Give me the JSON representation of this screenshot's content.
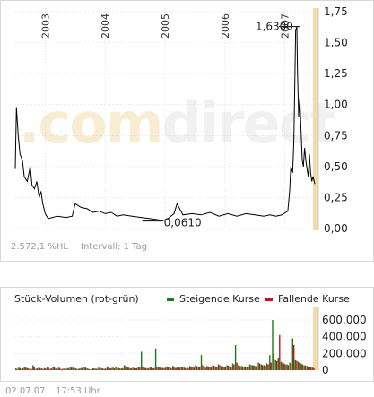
{
  "watermark": {
    "part1": ".com",
    "part2": "direct"
  },
  "footer": {
    "change": "2.572,1 %HL",
    "interval": "Intervall: 1 Tag",
    "date": "02.07.07",
    "time": "17:53 Uhr"
  },
  "colors": {
    "price_line": "#000000",
    "highlight": "#f3dda4",
    "rising": "#1a7a1a",
    "falling": "#c0161b",
    "grid": "#cccccc"
  },
  "chart_data": [
    {
      "type": "line",
      "title": "",
      "xlabel": "",
      "ylabel": "",
      "x_ticks": [
        "2003",
        "2004",
        "2005",
        "2006",
        "2007"
      ],
      "y_ticks": [
        "1,75",
        "1,50",
        "1,25",
        "1,00",
        "0,75",
        "0,50",
        "0,25",
        "0,00"
      ],
      "ylim": [
        0,
        1.75
      ],
      "xlim": [
        2002.5,
        2007.5
      ],
      "grid": true,
      "annotations": [
        {
          "label": "1,6300",
          "x": 2007.2,
          "y": 1.63
        },
        {
          "label": "0,0610",
          "x": 2004.95,
          "y": 0.061
        }
      ],
      "series": [
        {
          "values": [
            [
              2002.5,
              0.48
            ],
            [
              2002.52,
              0.98
            ],
            [
              2002.55,
              0.75
            ],
            [
              2002.58,
              0.6
            ],
            [
              2002.62,
              0.55
            ],
            [
              2002.65,
              0.42
            ],
            [
              2002.7,
              0.38
            ],
            [
              2002.75,
              0.5
            ],
            [
              2002.78,
              0.35
            ],
            [
              2002.82,
              0.32
            ],
            [
              2002.86,
              0.38
            ],
            [
              2002.9,
              0.25
            ],
            [
              2002.93,
              0.3
            ],
            [
              2002.96,
              0.2
            ],
            [
              2003.0,
              0.12
            ],
            [
              2003.05,
              0.08
            ],
            [
              2003.2,
              0.1
            ],
            [
              2003.35,
              0.09
            ],
            [
              2003.45,
              0.1
            ],
            [
              2003.5,
              0.2
            ],
            [
              2003.6,
              0.17
            ],
            [
              2003.7,
              0.16
            ],
            [
              2003.8,
              0.13
            ],
            [
              2003.9,
              0.14
            ],
            [
              2004.0,
              0.12
            ],
            [
              2004.1,
              0.13
            ],
            [
              2004.2,
              0.1
            ],
            [
              2004.3,
              0.11
            ],
            [
              2004.45,
              0.1
            ],
            [
              2004.6,
              0.09
            ],
            [
              2004.75,
              0.08
            ],
            [
              2004.9,
              0.07
            ],
            [
              2004.95,
              0.061
            ],
            [
              2005.05,
              0.08
            ],
            [
              2005.15,
              0.12
            ],
            [
              2005.2,
              0.2
            ],
            [
              2005.3,
              0.11
            ],
            [
              2005.45,
              0.12
            ],
            [
              2005.6,
              0.11
            ],
            [
              2005.75,
              0.13
            ],
            [
              2005.9,
              0.1
            ],
            [
              2006.05,
              0.12
            ],
            [
              2006.2,
              0.1
            ],
            [
              2006.35,
              0.12
            ],
            [
              2006.5,
              0.11
            ],
            [
              2006.65,
              0.1
            ],
            [
              2006.75,
              0.11
            ],
            [
              2006.85,
              0.1
            ],
            [
              2006.95,
              0.11
            ],
            [
              2007.05,
              0.14
            ],
            [
              2007.08,
              0.3
            ],
            [
              2007.1,
              0.5
            ],
            [
              2007.13,
              0.45
            ],
            [
              2007.15,
              0.7
            ],
            [
              2007.17,
              1.3
            ],
            [
              2007.18,
              1.6
            ],
            [
              2007.2,
              1.63
            ],
            [
              2007.21,
              1.3
            ],
            [
              2007.23,
              0.9
            ],
            [
              2007.25,
              1.05
            ],
            [
              2007.27,
              0.8
            ],
            [
              2007.29,
              0.55
            ],
            [
              2007.31,
              0.5
            ],
            [
              2007.33,
              0.65
            ],
            [
              2007.35,
              0.55
            ],
            [
              2007.37,
              0.48
            ],
            [
              2007.39,
              0.42
            ],
            [
              2007.41,
              0.6
            ],
            [
              2007.43,
              0.45
            ],
            [
              2007.45,
              0.38
            ],
            [
              2007.47,
              0.42
            ],
            [
              2007.5,
              0.36
            ]
          ]
        }
      ]
    },
    {
      "type": "bar",
      "title": "Stück-Volumen (rot-grün)",
      "legend": [
        "Steigende Kurse",
        "Fallende Kurse"
      ],
      "y_ticks": [
        "600.000",
        "400.000",
        "200.000",
        "0"
      ],
      "ylim": [
        0,
        750000
      ],
      "series": [
        {
          "name": "Steigende Kurse",
          "values": [
            20000,
            30000,
            15000,
            40000,
            25000,
            10000,
            60000,
            15000,
            30000,
            20000,
            25000,
            35000,
            15000,
            45000,
            20000,
            30000,
            12000,
            18000,
            25000,
            40000,
            30000,
            20000,
            15000,
            28000,
            35000,
            20000,
            10000,
            22000,
            18000,
            30000,
            25000,
            15000,
            45000,
            20000,
            30000,
            40000,
            25000,
            20000,
            60000,
            35000,
            25000,
            30000,
            20000,
            40000,
            220000,
            30000,
            25000,
            35000,
            20000,
            260000,
            40000,
            30000,
            25000,
            45000,
            30000,
            50000,
            25000,
            35000,
            40000,
            30000,
            30000,
            50000,
            35000,
            60000,
            40000,
            180000,
            35000,
            50000,
            40000,
            60000,
            45000,
            70000,
            50000,
            40000,
            60000,
            45000,
            80000,
            300000,
            60000,
            50000,
            45000,
            40000,
            70000,
            60000,
            50000,
            90000,
            70000,
            60000,
            80000,
            180000,
            600000,
            120000,
            150000,
            100000,
            80000,
            70000,
            90000,
            380000,
            120000,
            100000,
            80000,
            60000,
            50000,
            40000,
            30000
          ]
        },
        {
          "name": "Fallende Kurse",
          "values": [
            15000,
            25000,
            20000,
            30000,
            20000,
            15000,
            40000,
            20000,
            25000,
            15000,
            20000,
            30000,
            20000,
            35000,
            15000,
            25000,
            18000,
            15000,
            20000,
            30000,
            25000,
            15000,
            20000,
            22000,
            30000,
            15000,
            12000,
            20000,
            15000,
            25000,
            20000,
            18000,
            35000,
            25000,
            20000,
            30000,
            20000,
            25000,
            50000,
            30000,
            20000,
            25000,
            25000,
            35000,
            40000,
            25000,
            20000,
            30000,
            25000,
            40000,
            30000,
            25000,
            30000,
            35000,
            25000,
            40000,
            30000,
            30000,
            35000,
            25000,
            25000,
            40000,
            30000,
            50000,
            35000,
            60000,
            30000,
            45000,
            35000,
            55000,
            40000,
            60000,
            45000,
            35000,
            55000,
            40000,
            70000,
            90000,
            50000,
            45000,
            40000,
            35000,
            60000,
            55000,
            45000,
            80000,
            60000,
            55000,
            70000,
            90000,
            200000,
            110000,
            420000,
            90000,
            70000,
            60000,
            80000,
            300000,
            110000,
            90000,
            70000,
            55000,
            45000,
            35000,
            25000
          ]
        }
      ]
    }
  ]
}
